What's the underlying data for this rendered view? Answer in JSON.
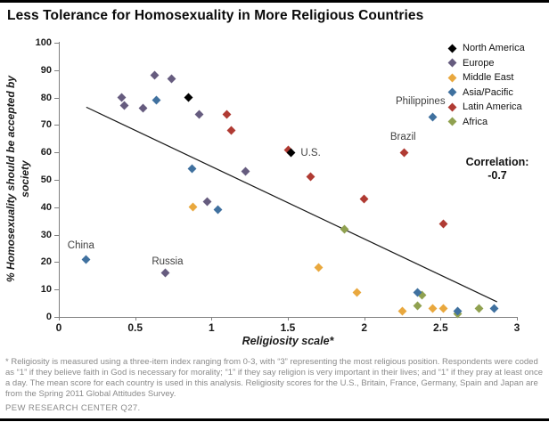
{
  "page": {
    "title": "Less Tolerance for Homosexuality in More Religious Countries"
  },
  "chart_data": {
    "type": "scatter",
    "title": "Less Tolerance for Homosexuality in More Religious Countries",
    "xlabel": "Religiosity scale*",
    "ylabel": "% Homosexuality should be accepted by society",
    "ylabel_display": {
      "line1": "% Homosexuality should be accepted by",
      "line2": "society"
    },
    "xlim": [
      0,
      3
    ],
    "ylim": [
      0,
      100
    ],
    "x_ticks": [
      0,
      0.5,
      1,
      1.5,
      2,
      2.5,
      3
    ],
    "x_tick_labels": [
      "0",
      "0.5",
      "1",
      "1.5",
      "2",
      "2.5",
      "3"
    ],
    "y_ticks": [
      0,
      10,
      20,
      30,
      40,
      50,
      60,
      70,
      80,
      90,
      100
    ],
    "grid": false,
    "legend_position": "upper-right",
    "marker": "diamond",
    "correlation": {
      "label": "Correlation:",
      "value": "-0.7"
    },
    "trend_line": {
      "x1": 0.18,
      "y1": 76.5,
      "x2": 2.87,
      "y2": 5.5,
      "color": "#1a1a1a"
    },
    "draw_order": [
      1,
      2,
      5,
      3,
      4,
      0
    ],
    "series": [
      {
        "name": "North America",
        "color": "#000000",
        "points": [
          {
            "x": 0.85,
            "y": 80
          },
          {
            "x": 1.52,
            "y": 60,
            "label": "U.S.",
            "label_dx": 11,
            "label_dy": 1,
            "label_anchor": "left"
          }
        ]
      },
      {
        "name": "Europe",
        "color": "#665C7F",
        "points": [
          {
            "x": 0.41,
            "y": 80
          },
          {
            "x": 0.43,
            "y": 77
          },
          {
            "x": 0.55,
            "y": 76
          },
          {
            "x": 0.63,
            "y": 88
          },
          {
            "x": 0.74,
            "y": 87
          },
          {
            "x": 0.92,
            "y": 74
          },
          {
            "x": 0.97,
            "y": 42
          },
          {
            "x": 1.22,
            "y": 53
          },
          {
            "x": 0.7,
            "y": 16,
            "label": "Russia",
            "label_dx": 2,
            "label_dy": -13
          }
        ]
      },
      {
        "name": "Middle East",
        "color": "#E9A83E",
        "points": [
          {
            "x": 0.88,
            "y": 40
          },
          {
            "x": 1.7,
            "y": 18
          },
          {
            "x": 1.95,
            "y": 9
          },
          {
            "x": 2.25,
            "y": 2
          },
          {
            "x": 2.45,
            "y": 3
          },
          {
            "x": 2.52,
            "y": 3
          }
        ]
      },
      {
        "name": "Asia/Pacific",
        "color": "#40719F",
        "points": [
          {
            "x": 0.18,
            "y": 21,
            "label": "China",
            "label_dx": -6,
            "label_dy": -15
          },
          {
            "x": 0.64,
            "y": 79
          },
          {
            "x": 0.87,
            "y": 54
          },
          {
            "x": 1.04,
            "y": 39
          },
          {
            "x": 2.35,
            "y": 9
          },
          {
            "x": 2.45,
            "y": 73,
            "label": "Philippines",
            "label_dx": -14,
            "label_dy": -17
          },
          {
            "x": 2.61,
            "y": 2
          },
          {
            "x": 2.85,
            "y": 3
          }
        ]
      },
      {
        "name": "Latin America",
        "color": "#B03B33",
        "points": [
          {
            "x": 1.1,
            "y": 74
          },
          {
            "x": 1.13,
            "y": 68
          },
          {
            "x": 1.5,
            "y": 61
          },
          {
            "x": 1.65,
            "y": 51
          },
          {
            "x": 2.0,
            "y": 43
          },
          {
            "x": 2.26,
            "y": 60,
            "label": "Brazil",
            "label_dx": -1,
            "label_dy": -17
          },
          {
            "x": 2.52,
            "y": 34
          }
        ]
      },
      {
        "name": "Africa",
        "color": "#90A150",
        "points": [
          {
            "x": 1.87,
            "y": 32
          },
          {
            "x": 2.35,
            "y": 4
          },
          {
            "x": 2.38,
            "y": 8
          },
          {
            "x": 2.61,
            "y": 1
          },
          {
            "x": 2.75,
            "y": 3
          }
        ]
      }
    ]
  },
  "footnote": "* Religiosity is measured using a three-item index ranging from 0-3, with “3” representing the most religious position. Respondents were coded as “1” if they believe faith in God is necessary for morality; “1” if they say religion is very important in their lives; and “1” if they pray at least once a day. The mean score for each country is used in this analysis. Religiosity scores for the U.S., Britain, France, Germany, Spain and Japan are from the Spring 2011 Global Attitudes Survey.",
  "source": "PEW RESEARCH CENTER Q27."
}
